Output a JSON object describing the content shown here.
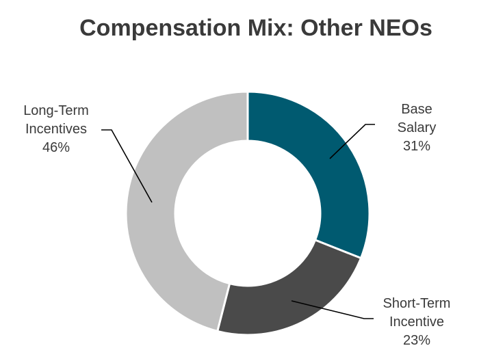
{
  "chart_data": {
    "type": "pie",
    "subtype": "donut",
    "title": "Compensation Mix: Other NEOs",
    "slices": [
      {
        "label_lines": [
          "Base",
          "Salary"
        ],
        "value_label": "31%",
        "value": 31,
        "color": "#005a70"
      },
      {
        "label_lines": [
          "Short-Term",
          "Incentive"
        ],
        "value_label": "23%",
        "value": 23,
        "color": "#4a4a4a"
      },
      {
        "label_lines": [
          "Long-Term",
          "Incentives"
        ],
        "value_label": "46%",
        "value": 46,
        "color": "#c0c0c0"
      }
    ],
    "start": "12 o'clock, clockwise",
    "legend": "none"
  }
}
